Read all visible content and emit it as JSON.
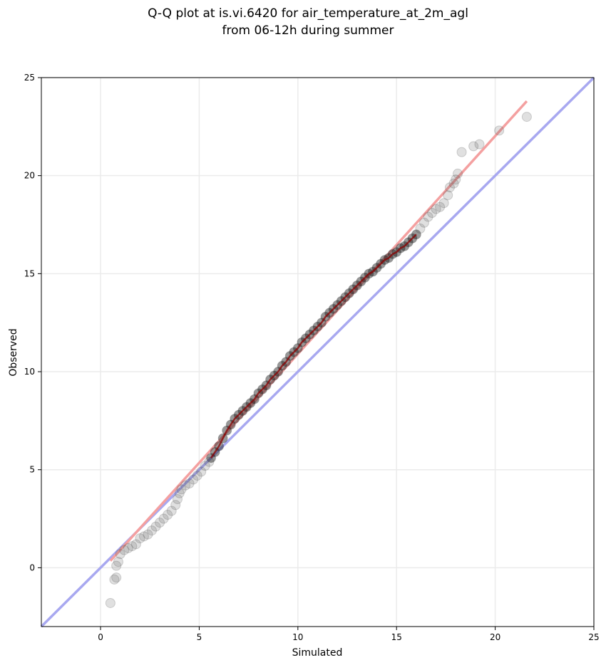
{
  "chart_data": {
    "type": "scatter",
    "title": "Q-Q plot at is.vi.6420 for air_temperature_at_2m_agl",
    "subtitle": "from 06-12h during summer",
    "xlabel": "Simulated",
    "ylabel": "Observed",
    "xlim": [
      -3,
      25
    ],
    "ylim": [
      -3,
      25
    ],
    "xticks": [
      0,
      5,
      10,
      15,
      20,
      25
    ],
    "yticks": [
      0,
      5,
      10,
      15,
      20,
      25
    ],
    "xtick_labels": [
      "0",
      "5",
      "10",
      "15",
      "20",
      "25"
    ],
    "ytick_labels": [
      "0",
      "5",
      "10",
      "15",
      "20",
      "25"
    ],
    "grid": true,
    "reference_line": {
      "from": [
        -3,
        -3
      ],
      "to": [
        25,
        25
      ],
      "color": "#a8a8f0"
    },
    "fit_line": {
      "from": [
        0.5,
        0.35
      ],
      "to": [
        21.6,
        23.8
      ],
      "color": "#f4a0a0"
    },
    "colors": {
      "points": "#555555",
      "line_overlay": "#8b0000"
    },
    "points": [
      [
        0.5,
        -1.8
      ],
      [
        0.7,
        -0.6
      ],
      [
        0.8,
        -0.5
      ],
      [
        0.8,
        0.1
      ],
      [
        0.9,
        0.3
      ],
      [
        1.0,
        0.7
      ],
      [
        1.2,
        0.9
      ],
      [
        1.4,
        1.0
      ],
      [
        1.6,
        1.1
      ],
      [
        1.8,
        1.2
      ],
      [
        2.0,
        1.5
      ],
      [
        2.2,
        1.6
      ],
      [
        2.4,
        1.7
      ],
      [
        2.6,
        1.9
      ],
      [
        2.8,
        2.1
      ],
      [
        3.0,
        2.3
      ],
      [
        3.2,
        2.5
      ],
      [
        3.4,
        2.7
      ],
      [
        3.6,
        2.9
      ],
      [
        3.8,
        3.2
      ],
      [
        3.9,
        3.5
      ],
      [
        4.0,
        3.8
      ],
      [
        4.1,
        4.0
      ],
      [
        4.3,
        4.2
      ],
      [
        4.5,
        4.3
      ],
      [
        4.7,
        4.5
      ],
      [
        4.9,
        4.7
      ],
      [
        5.1,
        4.9
      ],
      [
        5.3,
        5.2
      ],
      [
        5.5,
        5.4
      ],
      [
        5.6,
        5.6
      ],
      [
        5.8,
        5.9
      ],
      [
        6.0,
        6.2
      ],
      [
        6.2,
        6.6
      ],
      [
        6.4,
        7.0
      ],
      [
        6.6,
        7.3
      ],
      [
        6.8,
        7.6
      ],
      [
        7.0,
        7.8
      ],
      [
        7.2,
        8.0
      ],
      [
        7.4,
        8.2
      ],
      [
        7.6,
        8.4
      ],
      [
        7.8,
        8.6
      ],
      [
        8.0,
        8.9
      ],
      [
        8.2,
        9.1
      ],
      [
        8.4,
        9.3
      ],
      [
        8.6,
        9.6
      ],
      [
        8.8,
        9.8
      ],
      [
        9.0,
        10.0
      ],
      [
        9.2,
        10.3
      ],
      [
        9.4,
        10.5
      ],
      [
        9.6,
        10.8
      ],
      [
        9.8,
        11.0
      ],
      [
        10.0,
        11.2
      ],
      [
        10.2,
        11.5
      ],
      [
        10.4,
        11.7
      ],
      [
        10.6,
        11.9
      ],
      [
        10.8,
        12.1
      ],
      [
        11.0,
        12.3
      ],
      [
        11.2,
        12.5
      ],
      [
        11.4,
        12.8
      ],
      [
        11.6,
        13.0
      ],
      [
        11.8,
        13.2
      ],
      [
        12.0,
        13.4
      ],
      [
        12.2,
        13.6
      ],
      [
        12.4,
        13.8
      ],
      [
        12.6,
        14.0
      ],
      [
        12.8,
        14.2
      ],
      [
        13.0,
        14.4
      ],
      [
        13.2,
        14.6
      ],
      [
        13.4,
        14.8
      ],
      [
        13.6,
        15.0
      ],
      [
        13.8,
        15.1
      ],
      [
        14.0,
        15.3
      ],
      [
        14.2,
        15.5
      ],
      [
        14.4,
        15.7
      ],
      [
        14.6,
        15.8
      ],
      [
        14.8,
        16.0
      ],
      [
        15.0,
        16.1
      ],
      [
        15.2,
        16.3
      ],
      [
        15.4,
        16.4
      ],
      [
        15.6,
        16.6
      ],
      [
        15.8,
        16.8
      ],
      [
        16.0,
        17.0
      ],
      [
        16.2,
        17.3
      ],
      [
        16.4,
        17.6
      ],
      [
        16.6,
        17.9
      ],
      [
        16.8,
        18.1
      ],
      [
        17.0,
        18.3
      ],
      [
        17.2,
        18.4
      ],
      [
        17.4,
        18.6
      ],
      [
        17.6,
        19.0
      ],
      [
        17.7,
        19.4
      ],
      [
        17.9,
        19.6
      ],
      [
        18.0,
        19.8
      ],
      [
        18.1,
        20.1
      ],
      [
        18.3,
        21.2
      ],
      [
        18.9,
        21.5
      ],
      [
        19.2,
        21.6
      ],
      [
        20.2,
        22.3
      ],
      [
        21.6,
        23.0
      ]
    ]
  }
}
